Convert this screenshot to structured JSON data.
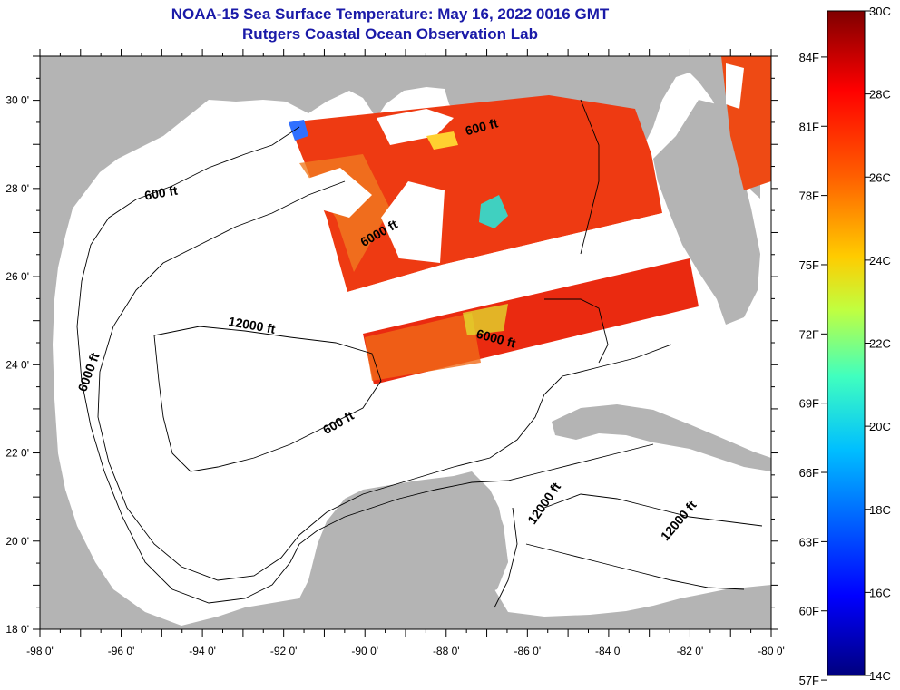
{
  "header": {
    "title": "NOAA-15 Sea Surface Temperature:  May 16, 2022 0016 GMT",
    "subtitle": "Rutgers Coastal Ocean Observation Lab"
  },
  "map": {
    "region": "Gulf of Mexico",
    "lat_range": [
      18,
      31
    ],
    "lon_range": [
      -98,
      -80
    ],
    "land_color": "#b4b4b4",
    "no_data_color": "#ffffff",
    "lat_ticks": [
      "18 0'",
      "20 0'",
      "22 0'",
      "24 0'",
      "26 0'",
      "28 0'",
      "30 0'"
    ],
    "lon_ticks": [
      "-98 0'",
      "-96 0'",
      "-94 0'",
      "-92 0'",
      "-90 0'",
      "-88 0'",
      "-86 0'",
      "-84 0'",
      "-82 0'",
      "-80 0'"
    ],
    "contour_labels": [
      {
        "text": "600 ft",
        "lat": 27.8,
        "lon": -95.0
      },
      {
        "text": "6000 ft",
        "lat": 23.8,
        "lon": -96.7
      },
      {
        "text": "12000 ft",
        "lat": 24.8,
        "lon": -92.8
      },
      {
        "text": "600 ft",
        "lat": 22.6,
        "lon": -90.6
      },
      {
        "text": "6000 ft",
        "lat": 26.9,
        "lon": -89.6
      },
      {
        "text": "600 ft",
        "lat": 29.3,
        "lon": -87.1
      },
      {
        "text": "6000 ft",
        "lat": 24.5,
        "lon": -86.8
      },
      {
        "text": "12000 ft",
        "lat": 20.8,
        "lon": -85.5
      },
      {
        "text": "12000 ft",
        "lat": 20.4,
        "lon": -82.2
      }
    ]
  },
  "colorbar": {
    "celsius_labels": [
      "30C",
      "28C",
      "26C",
      "24C",
      "22C",
      "20C",
      "18C",
      "16C",
      "14C"
    ],
    "fahrenheit_labels": [
      "84F",
      "81F",
      "78F",
      "75F",
      "72F",
      "69F",
      "66F",
      "63F",
      "60F",
      "57F"
    ],
    "colors": [
      "#00007f",
      "#0000ff",
      "#007fff",
      "#00ffff",
      "#7fff7f",
      "#ffff00",
      "#ff7f00",
      "#ff0000",
      "#7f0000"
    ]
  }
}
